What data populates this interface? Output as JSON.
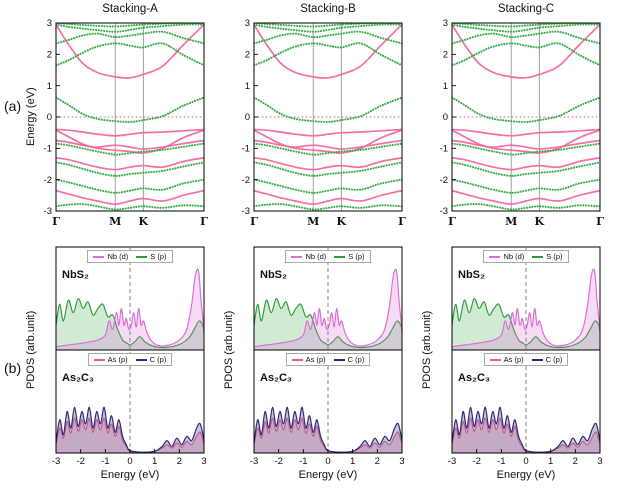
{
  "labels": {
    "panel_a": "(a)",
    "panel_b": "(b)"
  },
  "colors": {
    "band_green": "#2eaa3f",
    "band_pink": "#f4679f",
    "fermi": "#e060a0",
    "frame": "#000000",
    "kline": "#8a8a8a",
    "zero_dash": "#777777"
  },
  "chart_data": {
    "band_structures": {
      "type": "line",
      "titles": [
        "Stacking-A",
        "Stacking-B",
        "Stacking-C"
      ],
      "ylabel": "Energy (eV)",
      "ylim": [
        -3,
        3
      ],
      "yticks": [
        -3,
        -2,
        -1,
        0,
        1,
        2,
        3
      ],
      "fermi_energy": 0,
      "kpath": {
        "labels": [
          "Γ",
          "M",
          "K",
          "Γ"
        ],
        "positions": [
          0,
          0.4,
          0.59,
          1
        ]
      },
      "x": [
        0,
        0.08,
        0.18,
        0.28,
        0.4,
        0.5,
        0.59,
        0.72,
        0.86,
        1.0
      ],
      "green_bands": [
        [
          0.62,
          0.4,
          0.1,
          -0.06,
          -0.13,
          -0.16,
          -0.1,
          0.03,
          0.36,
          0.62
        ],
        [
          1.65,
          1.8,
          2.05,
          2.25,
          2.35,
          2.28,
          2.22,
          2.35,
          1.98,
          1.65
        ],
        [
          2.35,
          2.45,
          2.6,
          2.66,
          2.55,
          2.6,
          2.66,
          2.72,
          2.52,
          2.35
        ],
        [
          2.95,
          2.88,
          2.82,
          2.77,
          2.72,
          2.78,
          2.85,
          2.9,
          2.95,
          2.95
        ],
        [
          3.0,
          2.97,
          2.94,
          2.91,
          2.89,
          2.92,
          2.95,
          2.98,
          3.0,
          3.0
        ],
        [
          -0.85,
          -0.9,
          -1.0,
          -1.1,
          -1.2,
          -1.15,
          -1.1,
          -1.05,
          -0.95,
          -0.85
        ],
        [
          -1.45,
          -1.52,
          -1.65,
          -1.78,
          -1.88,
          -1.82,
          -1.78,
          -1.72,
          -1.58,
          -1.45
        ],
        [
          -2.0,
          -2.08,
          -2.2,
          -2.32,
          -2.42,
          -2.35,
          -2.28,
          -2.32,
          -2.12,
          -2.0
        ],
        [
          -2.85,
          -2.8,
          -2.78,
          -2.85,
          -2.95,
          -2.9,
          -2.85,
          -2.9,
          -2.82,
          -2.85
        ]
      ],
      "pink_bands": [
        [
          2.95,
          2.35,
          1.72,
          1.42,
          1.28,
          1.25,
          1.36,
          1.62,
          2.3,
          2.95
        ],
        [
          -0.4,
          -0.42,
          -0.48,
          -0.55,
          -0.6,
          -0.55,
          -0.5,
          -0.48,
          -0.44,
          -0.4
        ],
        [
          -0.42,
          -0.62,
          -0.86,
          -1.0,
          -1.06,
          -1.1,
          -1.15,
          -1.0,
          -0.66,
          -0.42
        ],
        [
          -1.3,
          -1.36,
          -1.48,
          -1.6,
          -1.68,
          -1.6,
          -1.55,
          -1.6,
          -1.42,
          -1.3
        ],
        [
          -2.35,
          -2.45,
          -2.58,
          -2.68,
          -2.78,
          -2.68,
          -2.6,
          -2.68,
          -2.5,
          -2.35
        ],
        [
          -0.75,
          -0.8,
          -0.9,
          -0.96,
          -0.9,
          -0.96,
          -1.02,
          -0.96,
          -0.85,
          -0.75
        ]
      ]
    },
    "pdos": {
      "type": "area",
      "stackings": [
        "Stacking-A",
        "Stacking-B",
        "Stacking-C"
      ],
      "xlabel": "Energy (eV)",
      "ylabel": "PDOS (arb.unit)",
      "xlim": [
        -3,
        3
      ],
      "xticks": [
        -3,
        -2,
        -1,
        0,
        1,
        2,
        3
      ],
      "zero_line": 0,
      "panels": [
        {
          "material": "NbS₂",
          "legend": [
            {
              "label": "Nb (d)",
              "color": "#da70d6"
            },
            {
              "label": "S (p)",
              "color": "#2e9e3c"
            }
          ],
          "curves": [
            {
              "name": "S (p)",
              "color": "#2e9e3c",
              "fill": "rgba(46,158,60,0.22)",
              "points": [
                [
                  -3,
                  0.3
                ],
                [
                  -2.85,
                  0.55
                ],
                [
                  -2.7,
                  0.35
                ],
                [
                  -2.5,
                  0.6
                ],
                [
                  -2.3,
                  0.45
                ],
                [
                  -2.1,
                  0.62
                ],
                [
                  -1.9,
                  0.5
                ],
                [
                  -1.7,
                  0.58
                ],
                [
                  -1.5,
                  0.42
                ],
                [
                  -1.3,
                  0.5
                ],
                [
                  -1.1,
                  0.55
                ],
                [
                  -0.9,
                  0.4
                ],
                [
                  -0.7,
                  0.42
                ],
                [
                  -0.5,
                  0.25
                ],
                [
                  -0.3,
                  0.12
                ],
                [
                  -0.1,
                  0.08
                ],
                [
                  0,
                  0.06
                ],
                [
                  0.2,
                  0.1
                ],
                [
                  0.4,
                  0.16
                ],
                [
                  0.6,
                  0.1
                ],
                [
                  0.9,
                  0.05
                ],
                [
                  1.3,
                  0.03
                ],
                [
                  1.7,
                  0.04
                ],
                [
                  2.1,
                  0.08
                ],
                [
                  2.4,
                  0.15
                ],
                [
                  2.6,
                  0.25
                ],
                [
                  2.8,
                  0.35
                ],
                [
                  2.95,
                  0.3
                ],
                [
                  3,
                  0.22
                ]
              ]
            },
            {
              "name": "Nb (d)",
              "color": "#da70d6",
              "fill": "rgba(218,112,214,0.25)",
              "points": [
                [
                  -3,
                  0.04
                ],
                [
                  -2.5,
                  0.06
                ],
                [
                  -2.0,
                  0.08
                ],
                [
                  -1.6,
                  0.1
                ],
                [
                  -1.3,
                  0.12
                ],
                [
                  -1.0,
                  0.18
                ],
                [
                  -0.85,
                  0.35
                ],
                [
                  -0.7,
                  0.25
                ],
                [
                  -0.55,
                  0.45
                ],
                [
                  -0.45,
                  0.3
                ],
                [
                  -0.35,
                  0.5
                ],
                [
                  -0.25,
                  0.3
                ],
                [
                  -0.15,
                  0.38
                ],
                [
                  -0.05,
                  0.25
                ],
                [
                  0.05,
                  0.3
                ],
                [
                  0.15,
                  0.45
                ],
                [
                  0.25,
                  0.28
                ],
                [
                  0.35,
                  0.5
                ],
                [
                  0.45,
                  0.3
                ],
                [
                  0.55,
                  0.35
                ],
                [
                  0.7,
                  0.2
                ],
                [
                  0.9,
                  0.1
                ],
                [
                  1.2,
                  0.05
                ],
                [
                  1.6,
                  0.06
                ],
                [
                  2.0,
                  0.12
                ],
                [
                  2.3,
                  0.25
                ],
                [
                  2.5,
                  0.55
                ],
                [
                  2.65,
                  0.9
                ],
                [
                  2.78,
                  0.95
                ],
                [
                  2.88,
                  0.6
                ],
                [
                  3,
                  0.25
                ]
              ]
            }
          ]
        },
        {
          "material": "As₂C₃",
          "legend": [
            {
              "label": "As (p)",
              "color": "#ee5f7e"
            },
            {
              "label": "C (p)",
              "color": "#2b2b7a"
            }
          ],
          "curves": [
            {
              "name": "As (p)",
              "color": "#ee5f7e",
              "fill": "rgba(238,95,126,0.30)",
              "points": [
                [
                  -3,
                  0.1
                ],
                [
                  -2.85,
                  0.3
                ],
                [
                  -2.7,
                  0.18
                ],
                [
                  -2.55,
                  0.38
                ],
                [
                  -2.4,
                  0.24
                ],
                [
                  -2.25,
                  0.42
                ],
                [
                  -2.1,
                  0.26
                ],
                [
                  -1.95,
                  0.4
                ],
                [
                  -1.8,
                  0.28
                ],
                [
                  -1.65,
                  0.42
                ],
                [
                  -1.5,
                  0.25
                ],
                [
                  -1.35,
                  0.4
                ],
                [
                  -1.2,
                  0.28
                ],
                [
                  -1.05,
                  0.42
                ],
                [
                  -0.9,
                  0.24
                ],
                [
                  -0.75,
                  0.35
                ],
                [
                  -0.6,
                  0.2
                ],
                [
                  -0.45,
                  0.32
                ],
                [
                  -0.3,
                  0.15
                ],
                [
                  -0.15,
                  0.08
                ],
                [
                  0,
                  0.02
                ],
                [
                  0.5,
                  0.01
                ],
                [
                  1.0,
                  0.02
                ],
                [
                  1.3,
                  0.06
                ],
                [
                  1.5,
                  0.1
                ],
                [
                  1.7,
                  0.06
                ],
                [
                  1.9,
                  0.12
                ],
                [
                  2.1,
                  0.07
                ],
                [
                  2.3,
                  0.14
                ],
                [
                  2.5,
                  0.1
                ],
                [
                  2.7,
                  0.2
                ],
                [
                  2.85,
                  0.25
                ],
                [
                  3,
                  0.1
                ]
              ]
            },
            {
              "name": "C (p)",
              "color": "#2b2b7a",
              "fill": "rgba(96,96,170,0.35)",
              "points": [
                [
                  -3,
                  0.12
                ],
                [
                  -2.85,
                  0.4
                ],
                [
                  -2.7,
                  0.22
                ],
                [
                  -2.55,
                  0.5
                ],
                [
                  -2.4,
                  0.3
                ],
                [
                  -2.25,
                  0.55
                ],
                [
                  -2.1,
                  0.32
                ],
                [
                  -1.95,
                  0.5
                ],
                [
                  -1.8,
                  0.35
                ],
                [
                  -1.65,
                  0.55
                ],
                [
                  -1.5,
                  0.3
                ],
                [
                  -1.35,
                  0.5
                ],
                [
                  -1.2,
                  0.35
                ],
                [
                  -1.05,
                  0.55
                ],
                [
                  -0.9,
                  0.3
                ],
                [
                  -0.75,
                  0.45
                ],
                [
                  -0.6,
                  0.25
                ],
                [
                  -0.45,
                  0.4
                ],
                [
                  -0.3,
                  0.2
                ],
                [
                  -0.15,
                  0.1
                ],
                [
                  0,
                  0.03
                ],
                [
                  0.5,
                  0.01
                ],
                [
                  1.0,
                  0.02
                ],
                [
                  1.3,
                  0.08
                ],
                [
                  1.5,
                  0.15
                ],
                [
                  1.7,
                  0.08
                ],
                [
                  1.9,
                  0.18
                ],
                [
                  2.1,
                  0.1
                ],
                [
                  2.3,
                  0.2
                ],
                [
                  2.5,
                  0.15
                ],
                [
                  2.7,
                  0.3
                ],
                [
                  2.85,
                  0.35
                ],
                [
                  3,
                  0.15
                ]
              ]
            }
          ]
        }
      ]
    }
  }
}
